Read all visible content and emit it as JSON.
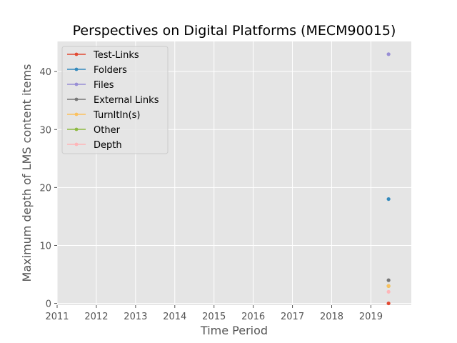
{
  "chart_data": {
    "type": "scatter",
    "title": "Perspectives on Digital Platforms (MECM90015)",
    "xlabel": "Time Period",
    "ylabel": "Maximum depth of LMS content items",
    "xlim": [
      2011.0,
      2020.03
    ],
    "ylim": [
      -0.3,
      45.2
    ],
    "x_ticks": [
      2011,
      2012,
      2013,
      2014,
      2015,
      2016,
      2017,
      2018,
      2019
    ],
    "y_ticks": [
      0,
      10,
      20,
      30,
      40
    ],
    "grid": true,
    "legend_position": "upper-left",
    "background": "#e5e5e5",
    "series": [
      {
        "name": "Test-Links",
        "color": "#e24a33",
        "points": [
          [
            2019.45,
            0
          ]
        ]
      },
      {
        "name": "Folders",
        "color": "#348abd",
        "points": [
          [
            2019.45,
            18
          ]
        ]
      },
      {
        "name": "Files",
        "color": "#988ed5",
        "points": [
          [
            2019.45,
            43
          ]
        ]
      },
      {
        "name": "External Links",
        "color": "#777777",
        "points": [
          [
            2019.45,
            4
          ]
        ]
      },
      {
        "name": "TurnItIn(s)",
        "color": "#fbc15e",
        "points": [
          [
            2019.45,
            3
          ]
        ]
      },
      {
        "name": "Other",
        "color": "#8eba42",
        "points": [
          [
            2019.45,
            3
          ]
        ]
      },
      {
        "name": "Depth",
        "color": "#ffb5b8",
        "points": [
          [
            2019.45,
            2
          ]
        ]
      }
    ]
  }
}
